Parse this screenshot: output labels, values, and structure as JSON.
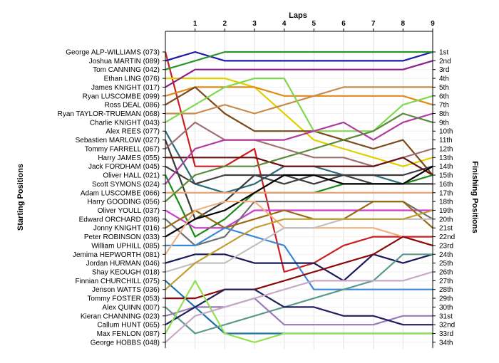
{
  "chart_data": {
    "type": "line",
    "title": "Laps",
    "xlabel": "Laps",
    "ylabel_left": "Starting Positions",
    "ylabel_right": "Finishing Positions",
    "laps": [
      1,
      2,
      3,
      4,
      5,
      6,
      7,
      8,
      9
    ],
    "drivers": [
      "George ALP-WILLIAMS (073)",
      "Joshua MARTIN (089)",
      "Tom CANNING (042)",
      "Ethan LING (076)",
      "James KNIGHT (017)",
      "Ryan LUSCOMBE (099)",
      "Ross DEAL (086)",
      "Ryan TAYLOR-TRUEMAN (068)",
      "Charlie KNIGHT (043)",
      "Alex REES (077)",
      "Sebastien MARLOW (027)",
      "Tommy FARRELL (067)",
      "Harry JAMES (055)",
      "Jack FORDHAM (045)",
      "Oliver HALL (021)",
      "Scott SYMONS (024)",
      "Adam LUSCOMBE (066)",
      "Harry GOODING (056)",
      "Oliver YOULL (037)",
      "Edward ORCHARD (036)",
      "Jonny KNIGHT (016)",
      "Peter ROBINSON (033)",
      "William UPHILL (085)",
      "Jemima HEPWORTH (081)",
      "Jordan HURMAN (046)",
      "Shay KEOUGH (018)",
      "Finnian CHURCHILL (075)",
      "Jenson WATTS (036)",
      "Tommy FOSTER (053)",
      "Alex QUINN (007)",
      "Kieran CHANNING (023)",
      "Callum HUNT (065)",
      "Max FENLON (087)",
      "George HOBBS (048)"
    ],
    "finish_labels": [
      "1st",
      "2nd",
      "3rd",
      "4th",
      "5th",
      "6th",
      "7th",
      "8th",
      "9th",
      "10th",
      "11th",
      "12th",
      "13th",
      "14th",
      "15th",
      "16th",
      "17th",
      "18th",
      "19th",
      "20th",
      "21st",
      "22nd",
      "23rd",
      "24th",
      "25th",
      "26th",
      "27th",
      "28th",
      "29th",
      "30th",
      "31st",
      "32nd",
      "33rd",
      "34th"
    ],
    "series": [
      {
        "color": "#cc1f1f",
        "positions": [
          1,
          14,
          14,
          12,
          26,
          25,
          23,
          22,
          22,
          22
        ]
      },
      {
        "color": "#1a1aa6",
        "positions": [
          2,
          1,
          2,
          2,
          2,
          2,
          2,
          2,
          2,
          1
        ]
      },
      {
        "color": "#27952a",
        "positions": [
          3,
          2,
          1,
          1,
          1,
          1,
          1,
          1,
          1,
          1
        ]
      },
      {
        "color": "#e0d000",
        "positions": [
          4,
          4,
          4,
          5,
          8,
          11,
          12,
          13,
          14,
          13
        ]
      },
      {
        "color": "#8a1f8a",
        "positions": [
          5,
          3,
          3,
          3,
          3,
          3,
          3,
          3,
          3,
          2
        ]
      },
      {
        "color": "#e08a1a",
        "positions": [
          6,
          5,
          5,
          5,
          6,
          6,
          6,
          6,
          6,
          7
        ]
      },
      {
        "color": "#7a4a1a",
        "positions": [
          7,
          5,
          8,
          10,
          10,
          10,
          11,
          12,
          11,
          15
        ]
      },
      {
        "color": "#c88c4a",
        "positions": [
          8,
          8,
          7,
          8,
          7,
          6,
          5,
          5,
          5,
          5
        ]
      },
      {
        "color": "#7fd94f",
        "positions": [
          9,
          7,
          5,
          4,
          4,
          10,
          10,
          10,
          7,
          6
        ]
      },
      {
        "color": "#2a6a7a",
        "positions": [
          10,
          16,
          17,
          16,
          14,
          14,
          15,
          15,
          16,
          16
        ]
      },
      {
        "color": "#3a3a3a",
        "positions": [
          11,
          20,
          18,
          15,
          15,
          16,
          15,
          15,
          15,
          14
        ]
      },
      {
        "color": "#a07070",
        "positions": [
          12,
          9,
          11,
          11,
          12,
          13,
          13,
          14,
          13,
          12
        ]
      },
      {
        "color": "#6a1010",
        "positions": [
          13,
          13,
          13,
          13,
          14,
          14,
          14,
          14,
          13,
          15
        ]
      },
      {
        "color": "#404040",
        "positions": [
          14,
          16,
          15,
          15,
          16,
          15,
          15,
          16,
          16,
          16
        ]
      },
      {
        "color": "#1a8a1a",
        "positions": [
          15,
          22,
          20,
          17,
          17,
          17,
          16,
          16,
          16,
          15
        ]
      },
      {
        "color": "#b03aa0",
        "positions": [
          16,
          12,
          11,
          11,
          11,
          10,
          9,
          11,
          9,
          8
        ]
      },
      {
        "color": "#e8a070",
        "positions": [
          17,
          17,
          17,
          17,
          17,
          17,
          17,
          17,
          17,
          17
        ]
      },
      {
        "color": "#5a8a3a",
        "positions": [
          18,
          15,
          14,
          14,
          13,
          12,
          11,
          10,
          8,
          9
        ]
      },
      {
        "color": "#d03ad0",
        "positions": [
          19,
          21,
          21,
          19,
          19,
          19,
          19,
          19,
          19,
          19
        ]
      },
      {
        "color": "#707070",
        "positions": [
          20,
          23,
          22,
          18,
          18,
          18,
          18,
          18,
          18,
          20
        ]
      },
      {
        "color": "#9a6a10",
        "positions": [
          21,
          19,
          21,
          20,
          19,
          20,
          20,
          18,
          18,
          21
        ]
      },
      {
        "color": "#000000",
        "positions": [
          22,
          20,
          19,
          17,
          15,
          15,
          16,
          16,
          16,
          14
        ]
      },
      {
        "color": "#3a88d8",
        "positions": [
          23,
          23,
          21,
          22,
          23,
          28,
          28,
          28,
          28,
          28
        ]
      },
      {
        "color": "#f0b080",
        "positions": [
          24,
          19,
          18,
          18,
          21,
          21,
          21,
          21,
          22,
          23
        ]
      },
      {
        "color": "#1a1a5a",
        "positions": [
          25,
          24,
          24,
          25,
          25,
          25,
          27,
          24,
          25,
          24
        ]
      },
      {
        "color": "#c0c0c0",
        "positions": [
          26,
          25,
          25,
          23,
          21,
          21,
          20,
          20,
          20,
          20
        ]
      },
      {
        "color": "#1a70a8",
        "positions": [
          27,
          30,
          33,
          33,
          33,
          33,
          33,
          33,
          33,
          33
        ]
      },
      {
        "color": "#c0a030",
        "positions": [
          28,
          25,
          23,
          21,
          20,
          20,
          20,
          20,
          20,
          19
        ]
      },
      {
        "color": "#8a0a0a",
        "positions": [
          29,
          29,
          28,
          28,
          27,
          26,
          25,
          24,
          22,
          23
        ]
      },
      {
        "color": "#5a9a8a",
        "positions": [
          30,
          33,
          32,
          31,
          30,
          29,
          28,
          27,
          24,
          24
        ]
      },
      {
        "color": "#9a7aba",
        "positions": [
          31,
          30,
          30,
          29,
          32,
          32,
          32,
          32,
          31,
          31
        ]
      },
      {
        "color": "#202060",
        "positions": [
          32,
          30,
          28,
          28,
          30,
          30,
          31,
          31,
          32,
          32
        ]
      },
      {
        "color": "#90e050",
        "positions": [
          33,
          27,
          33,
          34,
          33,
          33,
          33,
          33,
          33,
          33
        ]
      },
      {
        "color": "#c8a8c8",
        "positions": [
          34,
          31,
          30,
          29,
          28,
          27,
          27,
          27,
          27,
          26
        ]
      }
    ]
  }
}
